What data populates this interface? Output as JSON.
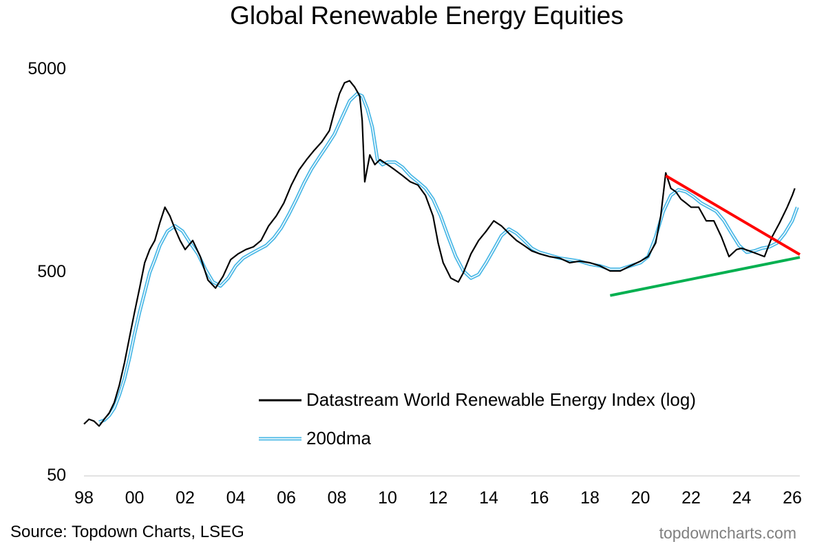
{
  "chart_data": {
    "type": "line",
    "title": "Global Renewable Energy Equities",
    "y_scale": "log",
    "ylim": [
      50,
      5000
    ],
    "y_ticks": [
      "5000",
      "500",
      "50"
    ],
    "y_tick_values": [
      5000,
      500,
      50
    ],
    "xlim": [
      1998,
      2026.3
    ],
    "x_ticks": [
      "98",
      "00",
      "02",
      "04",
      "06",
      "08",
      "10",
      "12",
      "14",
      "16",
      "18",
      "20",
      "22",
      "24",
      "26"
    ],
    "x_tick_values": [
      1998,
      2000,
      2002,
      2004,
      2006,
      2008,
      2010,
      2012,
      2014,
      2016,
      2018,
      2020,
      2022,
      2024,
      2026
    ],
    "series": [
      {
        "name": "Datastream World Renewable Energy Index (log)",
        "color": "#000000",
        "x": [
          1998.0,
          1998.2,
          1998.4,
          1998.6,
          1998.8,
          1999.0,
          1999.2,
          1999.4,
          1999.6,
          1999.8,
          2000.0,
          2000.2,
          2000.4,
          2000.6,
          2000.8,
          2001.0,
          2001.2,
          2001.4,
          2001.6,
          2001.8,
          2002.0,
          2002.3,
          2002.6,
          2002.9,
          2003.2,
          2003.5,
          2003.8,
          2004.1,
          2004.4,
          2004.7,
          2005.0,
          2005.3,
          2005.6,
          2005.9,
          2006.2,
          2006.5,
          2006.8,
          2007.1,
          2007.4,
          2007.7,
          2007.9,
          2008.1,
          2008.3,
          2008.5,
          2008.7,
          2008.9,
          2009.0,
          2009.1,
          2009.3,
          2009.5,
          2009.7,
          2010.0,
          2010.3,
          2010.6,
          2010.9,
          2011.2,
          2011.5,
          2011.8,
          2012.0,
          2012.2,
          2012.5,
          2012.8,
          2013.0,
          2013.3,
          2013.6,
          2013.9,
          2014.2,
          2014.5,
          2014.8,
          2015.1,
          2015.4,
          2015.7,
          2016.0,
          2016.4,
          2016.8,
          2017.2,
          2017.6,
          2018.0,
          2018.4,
          2018.8,
          2019.2,
          2019.6,
          2020.0,
          2020.3,
          2020.6,
          2020.8,
          2021.0,
          2021.2,
          2021.4,
          2021.6,
          2021.8,
          2022.0,
          2022.3,
          2022.6,
          2022.9,
          2023.2,
          2023.5,
          2023.8,
          2024.0,
          2024.3,
          2024.6,
          2024.9,
          2025.2,
          2025.5,
          2025.8,
          2026.0,
          2026.1
        ],
        "values": [
          90,
          95,
          93,
          88,
          95,
          102,
          115,
          140,
          180,
          240,
          320,
          420,
          560,
          650,
          720,
          880,
          1050,
          950,
          820,
          720,
          650,
          720,
          600,
          460,
          420,
          480,
          580,
          620,
          650,
          670,
          720,
          850,
          950,
          1100,
          1350,
          1600,
          1800,
          2000,
          2200,
          2500,
          3100,
          3800,
          4300,
          4400,
          4100,
          3700,
          2800,
          1400,
          1900,
          1700,
          1800,
          1700,
          1600,
          1500,
          1400,
          1350,
          1200,
          950,
          700,
          560,
          470,
          450,
          500,
          620,
          720,
          800,
          900,
          850,
          780,
          720,
          680,
          640,
          620,
          600,
          590,
          560,
          570,
          560,
          540,
          510,
          510,
          540,
          570,
          600,
          700,
          950,
          1550,
          1300,
          1250,
          1150,
          1100,
          1050,
          1050,
          900,
          900,
          750,
          600,
          650,
          660,
          640,
          620,
          600,
          750,
          880,
          1050,
          1200,
          1300
        ]
      },
      {
        "name": "200dma",
        "color": "#4bb8e6",
        "x": [
          1998.6,
          1998.8,
          1999.0,
          1999.2,
          1999.4,
          1999.6,
          1999.8,
          2000.0,
          2000.2,
          2000.4,
          2000.6,
          2000.8,
          2001.0,
          2001.3,
          2001.6,
          2001.9,
          2002.2,
          2002.5,
          2002.8,
          2003.1,
          2003.4,
          2003.7,
          2004.0,
          2004.3,
          2004.6,
          2004.9,
          2005.2,
          2005.5,
          2005.8,
          2006.1,
          2006.4,
          2006.7,
          2007.0,
          2007.3,
          2007.6,
          2007.9,
          2008.2,
          2008.5,
          2008.8,
          2009.0,
          2009.2,
          2009.4,
          2009.6,
          2009.8,
          2010.0,
          2010.3,
          2010.6,
          2010.9,
          2011.2,
          2011.5,
          2011.8,
          2012.1,
          2012.4,
          2012.7,
          2013.0,
          2013.3,
          2013.6,
          2013.9,
          2014.2,
          2014.5,
          2014.8,
          2015.1,
          2015.4,
          2015.7,
          2016.0,
          2016.4,
          2016.8,
          2017.2,
          2017.6,
          2018.0,
          2018.4,
          2018.8,
          2019.2,
          2019.6,
          2020.0,
          2020.3,
          2020.6,
          2020.9,
          2021.2,
          2021.5,
          2021.8,
          2022.1,
          2022.4,
          2022.7,
          2023.0,
          2023.3,
          2023.6,
          2023.9,
          2024.2,
          2024.5,
          2024.8,
          2025.1,
          2025.4,
          2025.7,
          2026.0,
          2026.2
        ],
        "values": [
          92,
          94,
          99,
          108,
          125,
          150,
          190,
          250,
          320,
          400,
          500,
          580,
          680,
          800,
          850,
          800,
          700,
          620,
          520,
          450,
          430,
          470,
          540,
          590,
          620,
          650,
          680,
          740,
          830,
          970,
          1150,
          1380,
          1620,
          1850,
          2100,
          2400,
          2900,
          3500,
          3800,
          3700,
          3200,
          2600,
          1800,
          1700,
          1750,
          1750,
          1650,
          1500,
          1400,
          1300,
          1150,
          950,
          750,
          600,
          510,
          470,
          490,
          560,
          650,
          760,
          820,
          780,
          720,
          660,
          630,
          610,
          590,
          580,
          570,
          550,
          540,
          520,
          520,
          540,
          560,
          600,
          750,
          1000,
          1200,
          1280,
          1250,
          1180,
          1100,
          1050,
          1000,
          900,
          780,
          680,
          630,
          640,
          660,
          670,
          700,
          780,
          900,
          1050
        ]
      }
    ],
    "annotations": [
      {
        "name": "resistance-trendline",
        "color": "#ff0000",
        "x": [
          2021.0,
          2026.3
        ],
        "values": [
          1500,
          614
        ]
      },
      {
        "name": "support-trendline",
        "color": "#00b050",
        "x": [
          2018.8,
          2026.3
        ],
        "values": [
          386,
          595
        ]
      }
    ],
    "legend": [
      {
        "label": "Datastream World Renewable Energy Index (log)",
        "style": "black-line"
      },
      {
        "label": "200dma",
        "style": "blue-double-line"
      }
    ],
    "legend_position": "bottom-right"
  },
  "footer": {
    "source": "Source: Topdown Charts, LSEG",
    "website": "topdowncharts.com"
  }
}
